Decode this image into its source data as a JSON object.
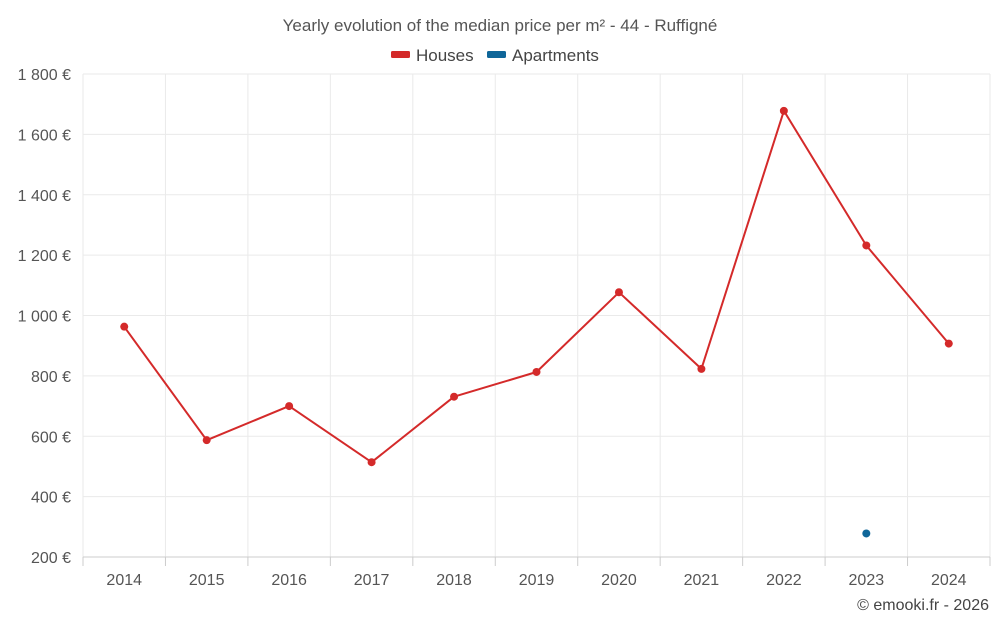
{
  "chart_data": {
    "type": "line",
    "title": "Yearly evolution of the median price per m² - 44 - Ruffigné",
    "xlabel": "",
    "ylabel": "",
    "categories": [
      "2014",
      "2015",
      "2016",
      "2017",
      "2018",
      "2019",
      "2020",
      "2021",
      "2022",
      "2023",
      "2024"
    ],
    "yticks": [
      200,
      400,
      600,
      800,
      1000,
      1200,
      1400,
      1600,
      1800
    ],
    "ytick_labels": [
      "200 €",
      "400 €",
      "600 €",
      "800 €",
      "1 000 €",
      "1 200 €",
      "1 400 €",
      "1 600 €",
      "1 800 €"
    ],
    "ylim": [
      200,
      1800
    ],
    "grid": true,
    "legend_position": "top-center",
    "series": [
      {
        "name": "Houses",
        "color": "#d42a2a",
        "values": [
          963,
          587,
          700,
          514,
          731,
          813,
          1077,
          823,
          1678,
          1232,
          907
        ]
      },
      {
        "name": "Apartments",
        "color": "#0f6699",
        "values": [
          null,
          null,
          null,
          null,
          null,
          null,
          null,
          null,
          null,
          278,
          null
        ]
      }
    ]
  },
  "credit": "© emooki.fr - 2026"
}
